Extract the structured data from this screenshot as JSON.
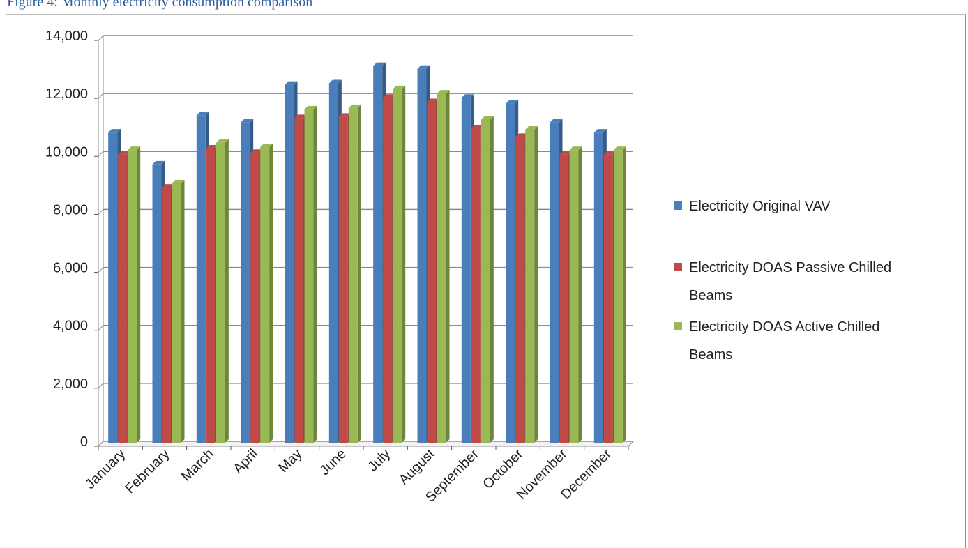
{
  "header": {
    "text": "Figure 4: Monthly electricity consumption comparison"
  },
  "chart_data": {
    "type": "bar",
    "categories": [
      "January",
      "February",
      "March",
      "April",
      "May",
      "June",
      "July",
      "August",
      "September",
      "October",
      "November",
      "December"
    ],
    "series": [
      {
        "name": "Electricity Original VAV",
        "color": "#4a7ebb",
        "values": [
          10700,
          9600,
          11300,
          11050,
          12350,
          12400,
          13000,
          12900,
          11900,
          11700,
          11050,
          10700
        ]
      },
      {
        "name": "Electricity DOAS Passive Chilled Beams",
        "color": "#be4b48",
        "values": [
          9950,
          8800,
          10150,
          10000,
          11200,
          11250,
          11900,
          11750,
          10850,
          10550,
          9950,
          9950
        ]
      },
      {
        "name": "Electricity DOAS Active Chilled Beams",
        "color": "#98b954",
        "values": [
          10100,
          8950,
          10350,
          10200,
          11500,
          11550,
          12200,
          12050,
          11150,
          10800,
          10100,
          10100
        ]
      }
    ],
    "y_ticks": [
      "0",
      "2,000",
      "4,000",
      "6,000",
      "8,000",
      "10,000",
      "12,000",
      "14,000"
    ],
    "ylim": [
      0,
      14000
    ],
    "legend": "right",
    "grid": true
  }
}
